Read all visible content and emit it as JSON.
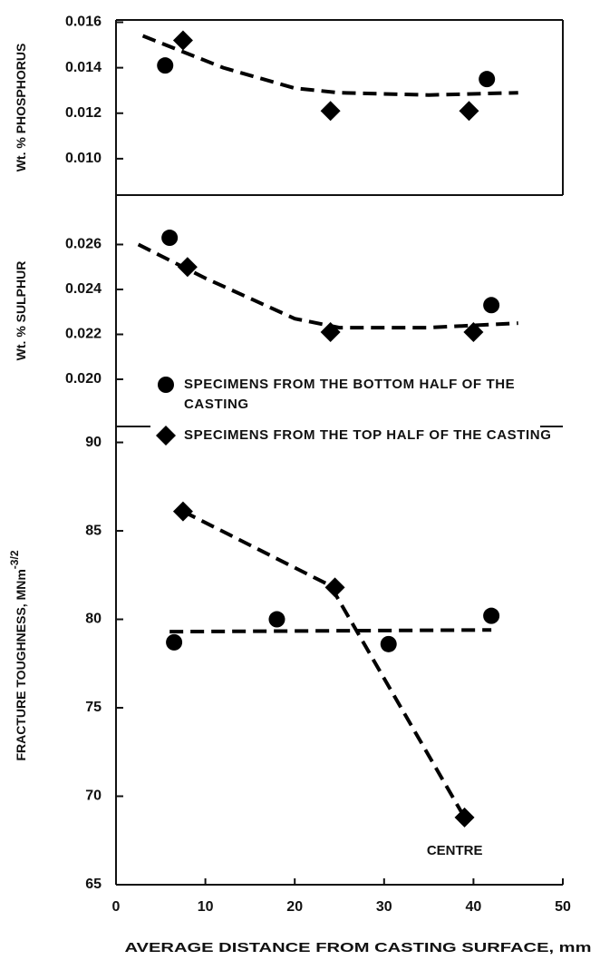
{
  "chart_data": [
    {
      "type": "scatter",
      "ylabel": "Wt. % PHOSPHORUS",
      "xlim": [
        0,
        50
      ],
      "ylim": [
        0.0084,
        0.0161
      ],
      "yticks": [
        {
          "value": 0.01,
          "label": "0.010"
        },
        0.012,
        0.014,
        0.016
      ],
      "series": [
        {
          "marker": "circle",
          "color": "#000000",
          "x": [
            5.5,
            41.5
          ],
          "values": [
            0.0141,
            0.0135
          ]
        },
        {
          "marker": "diamond",
          "color": "#000000",
          "x": [
            7.5,
            24,
            39.5
          ],
          "values": [
            0.0152,
            0.0121,
            0.0121
          ]
        },
        {
          "marker": "dashed-line",
          "color": "#000000",
          "x": [
            3,
            12,
            20,
            25,
            35,
            45
          ],
          "values": [
            0.0154,
            0.014,
            0.0131,
            0.0129,
            0.0128,
            0.0129
          ]
        }
      ]
    },
    {
      "type": "scatter",
      "ylabel": "Wt. % SULPHUR",
      "xlim": [
        0,
        50
      ],
      "ylim": [
        0.0179,
        0.0282
      ],
      "yticks": [
        {
          "value": 0.02,
          "label": "0.020"
        },
        0.022,
        0.024,
        0.026
      ],
      "series": [
        {
          "name": "SPECIMENS FROM THE BOTTOM HALF OF THE CASTING",
          "marker": "circle",
          "color": "#000000",
          "x": [
            6,
            42
          ],
          "values": [
            0.0263,
            0.0233
          ]
        },
        {
          "name": "SPECIMENS FROM THE TOP HALF OF THE CASTING",
          "marker": "diamond",
          "color": "#000000",
          "x": [
            8,
            24,
            40
          ],
          "values": [
            0.025,
            0.0221,
            0.0221
          ]
        },
        {
          "marker": "dashed-line",
          "color": "#000000",
          "x": [
            2.5,
            10,
            20,
            25,
            35,
            45
          ],
          "values": [
            0.026,
            0.0245,
            0.0227,
            0.0223,
            0.0223,
            0.0225
          ]
        }
      ]
    },
    {
      "type": "scatter",
      "ylabel": "FRACTURE TOUGHNESS, MNm",
      "ylabel_superscript": "-3/2",
      "xlabel": "AVERAGE DISTANCE FROM CASTING SURFACE, mm",
      "xlim": [
        0,
        50
      ],
      "xticks": [
        0,
        10,
        20,
        30,
        40,
        50
      ],
      "ylim": [
        65,
        90.9
      ],
      "yticks": [
        65,
        70,
        75,
        80,
        85,
        90
      ],
      "series": [
        {
          "marker": "circle",
          "color": "#000000",
          "x": [
            6.5,
            18,
            30.5,
            42
          ],
          "values": [
            78.7,
            80.0,
            78.6,
            80.2
          ]
        },
        {
          "marker": "diamond",
          "color": "#000000",
          "x": [
            7.5,
            24.5,
            39
          ],
          "values": [
            86.1,
            81.8,
            68.8
          ]
        },
        {
          "marker": "dashed-line",
          "color": "#000000",
          "x": [
            6,
            42
          ],
          "values": [
            79.3,
            79.4
          ]
        },
        {
          "marker": "dashed-line",
          "color": "#000000",
          "x": [
            7.5,
            24,
            39
          ],
          "values": [
            86.1,
            81.9,
            68.8
          ]
        }
      ],
      "annotations": [
        {
          "text": "CENTRE",
          "x": 37.9,
          "y": 66.9
        }
      ]
    }
  ]
}
